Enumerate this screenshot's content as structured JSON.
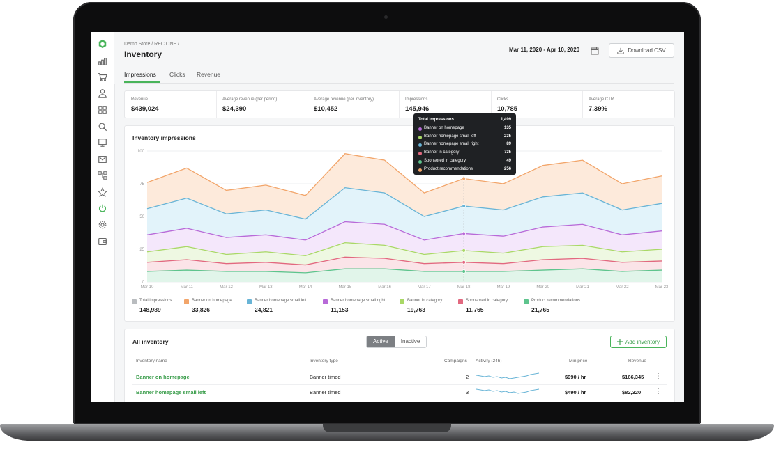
{
  "breadcrumb": "Demo Store / REC ONE /",
  "page_title": "Inventory",
  "date_range": "Mar 11, 2020 - Apr 10, 2020",
  "download_label": "Download CSV",
  "tabs": [
    {
      "label": "Impressions",
      "active": true
    },
    {
      "label": "Clicks",
      "active": false
    },
    {
      "label": "Revenue",
      "active": false
    }
  ],
  "stats": [
    {
      "label": "Revenue",
      "value": "$439,024"
    },
    {
      "label": "Average revenue (per period)",
      "value": "$24,390"
    },
    {
      "label": "Average revenue (per inventory)",
      "value": "$10,452"
    },
    {
      "label": "Impressions",
      "value": "145,946"
    },
    {
      "label": "Clicks",
      "value": "10,785"
    },
    {
      "label": "Average CTR",
      "value": "7.39%"
    }
  ],
  "chart_title": "Inventory impressions",
  "chart_data": {
    "type": "area",
    "title": "Inventory impressions",
    "x": [
      "Mar 10",
      "Mar 11",
      "Mar 12",
      "Mar 13",
      "Mar 14",
      "Mar 15",
      "Mar 16",
      "Mar 17",
      "Mar 18",
      "Mar 19",
      "Mar 20",
      "Mar 21",
      "Mar 22",
      "Mar 23"
    ],
    "ylim": [
      0,
      100
    ],
    "yticks": [
      0,
      25,
      50,
      75,
      100
    ],
    "grid": true,
    "stacked_totals": [
      {
        "name": "Banner on homepage",
        "color": "#f2a56a",
        "fill": "#fdeadb",
        "values": [
          76,
          87,
          70,
          74,
          66,
          98,
          93,
          68,
          79,
          75,
          89,
          93,
          75,
          81
        ]
      },
      {
        "name": "Banner homepage small left",
        "color": "#68b4d6",
        "fill": "#e2f3fa",
        "values": [
          56,
          64,
          52,
          55,
          48,
          72,
          68,
          50,
          58,
          55,
          65,
          68,
          55,
          60
        ]
      },
      {
        "name": "Banner homepage small right",
        "color": "#b86ad8",
        "fill": "#f4e7fb",
        "values": [
          36,
          41,
          34,
          36,
          32,
          46,
          44,
          32,
          37,
          35,
          42,
          44,
          36,
          39
        ]
      },
      {
        "name": "Banner in category",
        "color": "#a9d866",
        "fill": "#eef8e2",
        "values": [
          23,
          27,
          21,
          23,
          20,
          30,
          28,
          21,
          24,
          22,
          27,
          28,
          23,
          25
        ]
      },
      {
        "name": "Sponsored in category",
        "color": "#e2687f",
        "fill": "#fbe4e8",
        "values": [
          15,
          17,
          14,
          15,
          13,
          19,
          18,
          14,
          15,
          14,
          17,
          18,
          15,
          16
        ]
      },
      {
        "name": "Product recommendations",
        "color": "#5ec48d",
        "fill": "#e1f5ea",
        "values": [
          8,
          9,
          8,
          8,
          7,
          10,
          10,
          8,
          8,
          8,
          9,
          10,
          8,
          9
        ]
      }
    ],
    "highlight_index": 8
  },
  "tooltip": {
    "rows": [
      {
        "name": "Total impressions",
        "value": "1,499",
        "color": ""
      },
      {
        "name": "Banner on homepage",
        "value": "135",
        "color": "#b86ad8"
      },
      {
        "name": "Banner homepage small left",
        "value": "235",
        "color": "#a9d866"
      },
      {
        "name": "Banner homepage small right",
        "value": "89",
        "color": "#68b4d6"
      },
      {
        "name": "Banner in category",
        "value": "735",
        "color": "#e2687f"
      },
      {
        "name": "Sponsored in category",
        "value": "49",
        "color": "#5ec48d"
      },
      {
        "name": "Product recommendations",
        "value": "256",
        "color": "#f2a56a"
      }
    ]
  },
  "legend": [
    {
      "label": "Total impressions",
      "value": "148,989",
      "color": "#b9bcbf"
    },
    {
      "label": "Banner on homepage",
      "value": "33,826",
      "color": "#f2a56a"
    },
    {
      "label": "Banner homepage small left",
      "value": "24,821",
      "color": "#68b4d6"
    },
    {
      "label": "Banner homepage small right",
      "value": "11,153",
      "color": "#b86ad8"
    },
    {
      "label": "Banner in category",
      "value": "19,763",
      "color": "#a9d866"
    },
    {
      "label": "Sponsored in category",
      "value": "11,765",
      "color": "#e2687f"
    },
    {
      "label": "Product recommendations",
      "value": "21,765",
      "color": "#5ec48d"
    }
  ],
  "inventory": {
    "title": "All inventory",
    "toggle_active": "Active",
    "toggle_inactive": "Inactive",
    "add_label": "Add inventory",
    "headers": {
      "name": "Inventory name",
      "type": "Inventory type",
      "campaigns": "Campaigns",
      "activity": "Activity (24h)",
      "min_price": "Min price",
      "revenue": "Revenue"
    },
    "rows": [
      {
        "name": "Banner on homepage",
        "type": "Banner timed",
        "campaigns": "2",
        "min_price": "$990 / hr",
        "revenue": "$166,345"
      },
      {
        "name": "Banner homepage small left",
        "type": "Banner timed",
        "campaigns": "3",
        "min_price": "$490 / hr",
        "revenue": "$82,320"
      }
    ]
  },
  "sidebar": {
    "icons": [
      "logo-icon",
      "analytics-icon",
      "cart-icon",
      "user-icon",
      "grid-icon",
      "search-icon",
      "monitor-icon",
      "mail-icon",
      "flow-icon",
      "star-icon",
      "power-icon",
      "settings-icon",
      "wallet-icon"
    ]
  },
  "colors": {
    "accent": "#49b45a",
    "link": "#3a9d4b"
  }
}
